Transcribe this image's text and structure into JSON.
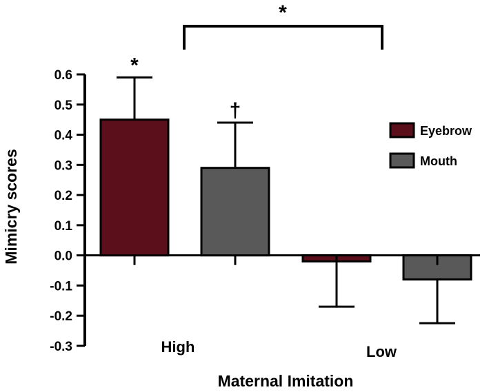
{
  "chart_data": {
    "type": "bar",
    "categories": [
      "High",
      "Low"
    ],
    "series": [
      {
        "name": "Eyebrow",
        "color": "#5a0f1a",
        "values": [
          0.45,
          -0.02
        ],
        "errors": [
          0.14,
          0.15
        ]
      },
      {
        "name": "Mouth",
        "color": "#595959",
        "values": [
          0.29,
          -0.08
        ],
        "errors": [
          0.15,
          0.145
        ]
      }
    ],
    "xlabel": "Maternal Imitation",
    "ylabel": "Mimicry scores",
    "ylim": [
      -0.3,
      0.6
    ],
    "yticks": [
      "0.6",
      "0.5",
      "0.4",
      "0.3",
      "0.2",
      "0.1",
      "0.0",
      "-0.1",
      "-0.2",
      "-0.3"
    ],
    "grid": false,
    "legend_position": "right",
    "annotations": [
      {
        "text": "*",
        "target": "High Eyebrow"
      },
      {
        "text": "†",
        "target": "High Mouth"
      },
      {
        "text": "*",
        "target": "High vs Low bracket"
      }
    ]
  }
}
